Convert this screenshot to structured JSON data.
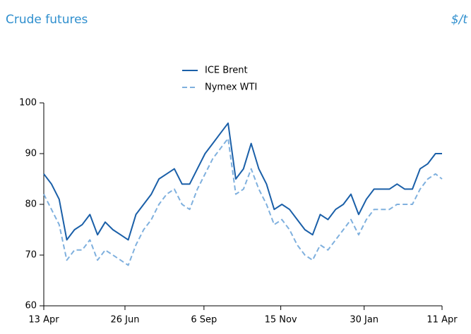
{
  "chart_data": {
    "type": "line",
    "title": "Crude futures",
    "unit_label": "$/t",
    "x": [
      "13 Apr",
      "20 Apr",
      "27 Apr",
      "4 May",
      "11 May",
      "18 May",
      "25 May",
      "1 Jun",
      "8 Jun",
      "15 Jun",
      "22 Jun",
      "29 Jun",
      "6 Jul",
      "13 Jul",
      "20 Jul",
      "27 Jul",
      "3 Aug",
      "10 Aug",
      "17 Aug",
      "24 Aug",
      "31 Aug",
      "7 Sep",
      "14 Sep",
      "21 Sep",
      "28 Sep",
      "5 Oct",
      "12 Oct",
      "19 Oct",
      "26 Oct",
      "2 Nov",
      "9 Nov",
      "16 Nov",
      "23 Nov",
      "30 Nov",
      "7 Dec",
      "14 Dec",
      "21 Dec",
      "28 Dec",
      "4 Jan",
      "11 Jan",
      "18 Jan",
      "25 Jan",
      "1 Feb",
      "8 Feb",
      "15 Feb",
      "22 Feb",
      "1 Mar",
      "8 Mar",
      "15 Mar",
      "22 Mar",
      "29 Mar",
      "5 Apr",
      "11 Apr"
    ],
    "series": [
      {
        "name": "ICE Brent",
        "color": "#1a5fa8",
        "dash": false,
        "values": [
          86,
          84,
          81,
          73,
          75,
          76,
          78,
          74,
          76.5,
          75,
          74,
          73,
          78,
          80,
          82,
          85,
          86,
          87,
          84,
          84,
          87,
          90,
          92,
          94,
          96,
          85,
          87,
          92,
          87,
          84,
          79,
          80,
          79,
          77,
          75,
          74,
          78,
          77,
          79,
          80,
          82,
          78,
          81,
          83,
          83,
          83,
          84,
          83,
          83,
          87,
          88,
          90,
          90
        ]
      },
      {
        "name": "Nymex WTI",
        "color": "#7fb0de",
        "dash": true,
        "values": [
          82,
          79,
          76,
          69,
          71,
          71,
          73,
          69,
          71,
          70,
          69,
          68,
          72,
          75,
          77,
          80,
          82,
          83,
          80,
          79,
          83,
          86,
          89,
          91,
          93,
          82,
          83,
          87,
          83,
          80,
          76,
          77,
          75,
          72,
          70,
          69,
          72,
          71,
          73,
          75,
          77,
          74,
          77,
          79,
          79,
          79,
          80,
          80,
          80,
          83,
          85,
          86,
          85
        ]
      }
    ],
    "xlim": [
      "13 Apr",
      "11 Apr"
    ],
    "xticks": [
      "13 Apr",
      "26 Jun",
      "6 Sep",
      "15 Nov",
      "30 Jan",
      "11 Apr"
    ],
    "ylim": [
      60,
      100
    ],
    "yticks": [
      60,
      70,
      80,
      90,
      100
    ],
    "legend": "top"
  }
}
